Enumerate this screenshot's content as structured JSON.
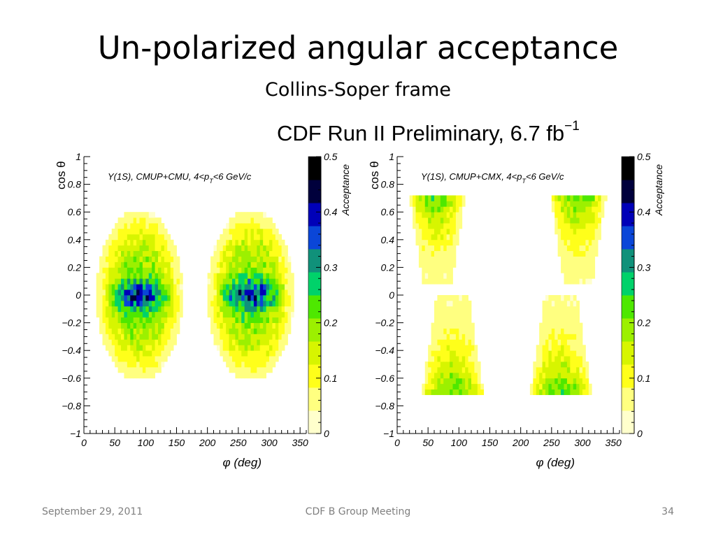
{
  "slide": {
    "title": "Un-polarized angular acceptance",
    "subtitle": "Collins-Soper frame",
    "header_main": "CDF Run II  Preliminary, 6.7 fb",
    "header_sup": "−1"
  },
  "footer": {
    "date": "September 29, 2011",
    "center": "CDF B Group Meeting",
    "page": "34"
  },
  "colors": {
    "scale": [
      "#ffffff",
      "#ffffcc",
      "#ffff80",
      "#ffff1a",
      "#d7f500",
      "#9cf000",
      "#4ee800",
      "#00d26a",
      "#10917a",
      "#0a46d8",
      "#0000b8",
      "#00003c",
      "#000000"
    ]
  },
  "chart_data": [
    {
      "type": "heatmap",
      "panel_label": "Υ(1S), CMUP+CMU, 4<p",
      "panel_label_sub": "T",
      "panel_label_end": "<6 GeV/c",
      "xlabel": "φ  (deg)",
      "ylabel": "cos θ",
      "zlabel": "Acceptance",
      "xlim": [
        0,
        360
      ],
      "ylim": [
        -1,
        1
      ],
      "zlim": [
        0,
        0.5
      ],
      "x_ticks": [
        "0",
        "50",
        "100",
        "150",
        "200",
        "250",
        "300",
        "350"
      ],
      "y_ticks": [
        "−1",
        "−0.8",
        "−0.6",
        "−0.4",
        "−0.2",
        "0",
        "0.2",
        "0.4",
        "0.6",
        "0.8",
        "1"
      ],
      "z_ticks": [
        "0",
        "0.1",
        "0.2",
        "0.3",
        "0.4",
        "0.5"
      ],
      "regions": [
        {
          "phi_center": 90,
          "phi_halfwidth": 68,
          "cos_halfheight": 0.6,
          "peak": 0.37,
          "edge": 0.05
        },
        {
          "phi_center": 270,
          "phi_halfwidth": 68,
          "cos_halfheight": 0.6,
          "peak": 0.37,
          "edge": 0.05
        }
      ]
    },
    {
      "type": "heatmap",
      "panel_label": "Υ(1S), CMUP+CMX, 4<p",
      "panel_label_sub": "T",
      "panel_label_end": "<6 GeV/c",
      "xlabel": "φ  (deg)",
      "ylabel": "cos θ",
      "zlabel": "Acceptance",
      "xlim": [
        0,
        360
      ],
      "ylim": [
        -1,
        1
      ],
      "zlim": [
        0,
        0.5
      ],
      "x_ticks": [
        "0",
        "50",
        "100",
        "150",
        "200",
        "250",
        "300",
        "350"
      ],
      "y_ticks": [
        "−1",
        "−0.8",
        "−0.6",
        "−0.4",
        "−0.2",
        "0",
        "0.2",
        "0.4",
        "0.6",
        "0.8",
        "1"
      ],
      "z_ticks": [
        "0",
        "0.1",
        "0.2",
        "0.3",
        "0.4",
        "0.5"
      ],
      "regions": [
        {
          "phi_center": 65,
          "phi_halfwidth": 40,
          "cos_min": 0.12,
          "cos_max": 0.68,
          "peak": 0.22,
          "edge": 0.05,
          "peak_side": "top"
        },
        {
          "phi_center": 293,
          "phi_halfwidth": 40,
          "cos_min": 0.12,
          "cos_max": 0.68,
          "peak": 0.22,
          "edge": 0.05,
          "peak_side": "top"
        },
        {
          "phi_center": 90,
          "phi_halfwidth": 45,
          "cos_min": -0.68,
          "cos_max": -0.05,
          "peak": 0.22,
          "edge": 0.05,
          "peak_side": "bottom"
        },
        {
          "phi_center": 265,
          "phi_halfwidth": 45,
          "cos_min": -0.68,
          "cos_max": -0.05,
          "peak": 0.22,
          "edge": 0.05,
          "peak_side": "bottom"
        }
      ]
    }
  ]
}
